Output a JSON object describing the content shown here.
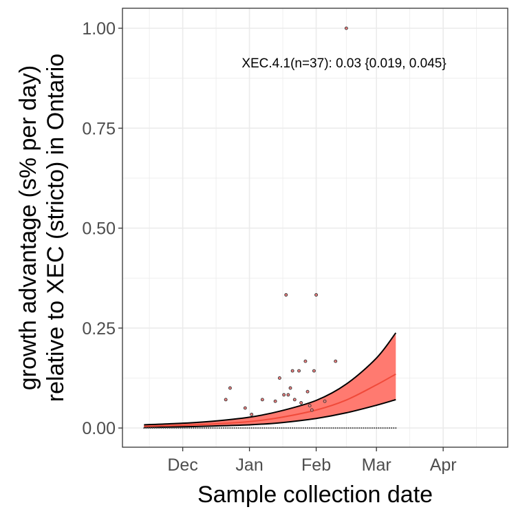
{
  "chart_data": {
    "type": "scatter",
    "xlabel": "Sample collection date",
    "ylabel_line1": "growth advantage (s% per day)",
    "ylabel_line2": "relative to XEC (stricto) in Ontario",
    "annotation": "XEC.4.1(n=37): 0.03 {0.019, 0.045}",
    "x_ticks": [
      {
        "label": "Dec",
        "date": "2024-12-01"
      },
      {
        "label": "Jan",
        "date": "2025-01-01"
      },
      {
        "label": "Feb",
        "date": "2025-02-01"
      },
      {
        "label": "Mar",
        "date": "2025-03-01"
      },
      {
        "label": "Apr",
        "date": "2025-04-01"
      }
    ],
    "xlim": [
      "2024-11-03",
      "2025-05-01"
    ],
    "y_ticks": [
      0.0,
      0.25,
      0.5,
      0.75,
      1.0
    ],
    "y_tick_labels": [
      "0.00",
      "0.25",
      "0.50",
      "0.75",
      "1.00"
    ],
    "ylim": [
      -0.048,
      1.05
    ],
    "grid": true,
    "colors": {
      "fit_line": "#f04a3a",
      "ribbon_fill": "#ff7a70",
      "ribbon_edge": "#000000",
      "point_fill": "#f08080",
      "point_edge": "#333333",
      "grid": "#ebebeb",
      "panel_border": "#333333"
    },
    "fit": {
      "x": [
        "2024-11-13",
        "2024-12-01",
        "2024-12-15",
        "2025-01-01",
        "2025-01-15",
        "2025-02-01",
        "2025-02-15",
        "2025-03-01",
        "2025-03-10"
      ],
      "y": [
        0.004,
        0.007,
        0.01,
        0.016,
        0.026,
        0.045,
        0.07,
        0.108,
        0.135
      ],
      "lower": [
        0.001,
        0.003,
        0.005,
        0.008,
        0.013,
        0.024,
        0.038,
        0.057,
        0.071
      ],
      "upper": [
        0.008,
        0.012,
        0.017,
        0.027,
        0.042,
        0.069,
        0.11,
        0.175,
        0.238
      ]
    },
    "points": [
      {
        "date": "2024-12-21",
        "value": 0.071
      },
      {
        "date": "2024-12-23",
        "value": 0.1
      },
      {
        "date": "2024-12-30",
        "value": 0.05
      },
      {
        "date": "2025-01-02",
        "value": 0.034
      },
      {
        "date": "2025-01-07",
        "value": 0.071
      },
      {
        "date": "2025-01-13",
        "value": 0.067
      },
      {
        "date": "2025-01-15",
        "value": 0.125
      },
      {
        "date": "2025-01-17",
        "value": 0.083
      },
      {
        "date": "2025-01-18",
        "value": 0.333
      },
      {
        "date": "2025-01-19",
        "value": 0.083
      },
      {
        "date": "2025-01-20",
        "value": 0.1
      },
      {
        "date": "2025-01-21",
        "value": 0.143
      },
      {
        "date": "2025-01-22",
        "value": 0.071
      },
      {
        "date": "2025-01-24",
        "value": 0.143
      },
      {
        "date": "2025-01-25",
        "value": 0.063
      },
      {
        "date": "2025-01-27",
        "value": 0.167
      },
      {
        "date": "2025-01-28",
        "value": 0.091
      },
      {
        "date": "2025-01-29",
        "value": 0.056
      },
      {
        "date": "2025-01-30",
        "value": 0.045
      },
      {
        "date": "2025-01-31",
        "value": 0.143
      },
      {
        "date": "2025-02-01",
        "value": 0.333
      },
      {
        "date": "2025-02-05",
        "value": 0.067
      },
      {
        "date": "2025-02-10",
        "value": 0.167
      },
      {
        "date": "2025-02-15",
        "value": 1.0
      }
    ],
    "zero_points": {
      "start": "2024-11-13",
      "end": "2025-03-10",
      "value": 0.0
    }
  }
}
